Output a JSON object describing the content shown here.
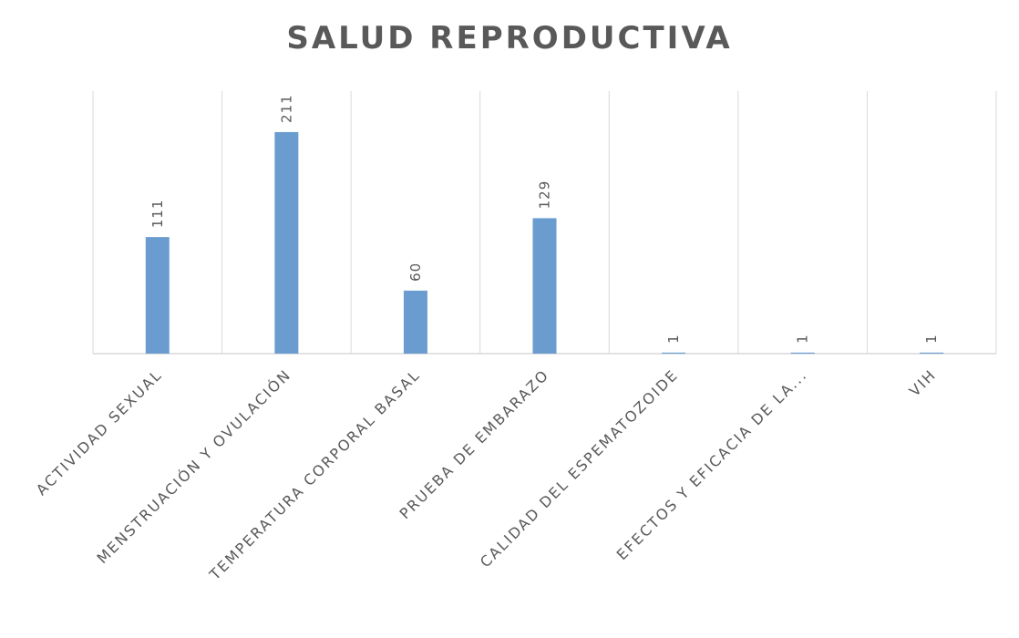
{
  "chart_data": {
    "type": "bar",
    "title": "SALUD REPRODUCTIVA",
    "categories": [
      "ACTIVIDAD SEXUAL",
      "MENSTRUACIÓN Y OVULACIÓN",
      "TEMPERATURA CORPORAL BASAL",
      "PRUEBA DE EMBARAZO",
      "CALIDAD DEL ESPEMATOZOIDE",
      "EFECTOS Y EFICACIA DE LA...",
      "VIH"
    ],
    "values": [
      111,
      211,
      60,
      129,
      1,
      1,
      1
    ],
    "xlabel": "",
    "ylabel": "",
    "ylim": [
      0,
      250
    ],
    "grid": "vertical category separators",
    "legend": "none",
    "colors": {
      "bar": "#6a9ccf",
      "grid": "#d9d9d9",
      "text": "#595959"
    }
  }
}
